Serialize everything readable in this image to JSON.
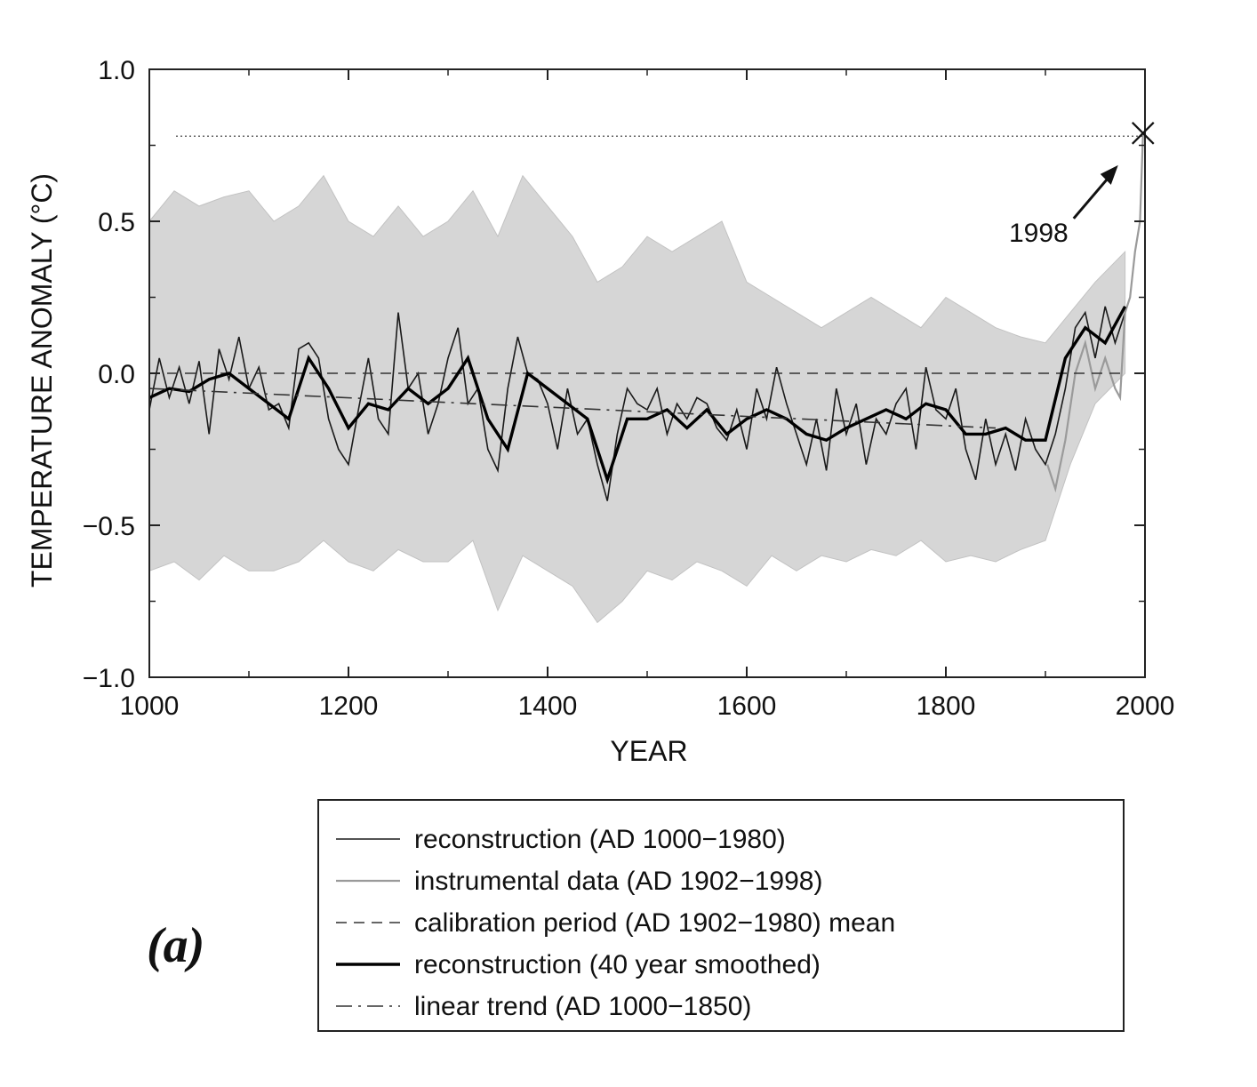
{
  "panel_label": "(a)",
  "chart_data": {
    "type": "line",
    "xlabel": "YEAR",
    "ylabel": "TEMPERATURE ANOMALY (°C)",
    "xlim": [
      1000,
      2000
    ],
    "ylim": [
      -1.0,
      1.0
    ],
    "x_ticks": [
      1000,
      1200,
      1400,
      1600,
      1800,
      2000
    ],
    "x_tick_labels": [
      "1000",
      "1200",
      "1400",
      "1600",
      "1800",
      "2000"
    ],
    "y_ticks": [
      1.0,
      0.5,
      0.0,
      -0.5,
      -1.0
    ],
    "y_tick_labels": [
      "1.0",
      "0.5",
      "0.0",
      "−0.5",
      "−1.0"
    ],
    "grid": false,
    "legend_position": "below",
    "annotation": {
      "text": "1998",
      "x": 1998,
      "y": 0.79
    },
    "reference_line_y": 0.78,
    "series": [
      {
        "name": "reconstruction (AD 1000−1980)",
        "style": "thin-solid",
        "x": [
          1000,
          1010,
          1020,
          1030,
          1040,
          1050,
          1060,
          1070,
          1080,
          1090,
          1100,
          1110,
          1120,
          1130,
          1140,
          1150,
          1160,
          1170,
          1180,
          1190,
          1200,
          1210,
          1220,
          1230,
          1240,
          1250,
          1260,
          1270,
          1280,
          1290,
          1300,
          1310,
          1320,
          1330,
          1340,
          1350,
          1360,
          1370,
          1380,
          1390,
          1400,
          1410,
          1420,
          1430,
          1440,
          1450,
          1460,
          1470,
          1480,
          1490,
          1500,
          1510,
          1520,
          1530,
          1540,
          1550,
          1560,
          1570,
          1580,
          1590,
          1600,
          1610,
          1620,
          1630,
          1640,
          1650,
          1660,
          1670,
          1680,
          1690,
          1700,
          1710,
          1720,
          1730,
          1740,
          1750,
          1760,
          1770,
          1780,
          1790,
          1800,
          1810,
          1820,
          1830,
          1840,
          1850,
          1860,
          1870,
          1880,
          1890,
          1900,
          1910,
          1920,
          1930,
          1940,
          1950,
          1960,
          1970,
          1980
        ],
        "y": [
          -0.12,
          0.05,
          -0.08,
          0.02,
          -0.1,
          0.04,
          -0.2,
          0.08,
          -0.02,
          0.12,
          -0.05,
          0.02,
          -0.12,
          -0.1,
          -0.18,
          0.08,
          0.1,
          0.05,
          -0.15,
          -0.25,
          -0.3,
          -0.12,
          0.05,
          -0.15,
          -0.2,
          0.2,
          -0.05,
          0.0,
          -0.2,
          -0.1,
          0.05,
          0.15,
          -0.1,
          -0.05,
          -0.25,
          -0.32,
          -0.05,
          0.12,
          0.0,
          -0.02,
          -0.1,
          -0.25,
          -0.05,
          -0.2,
          -0.15,
          -0.3,
          -0.42,
          -0.2,
          -0.05,
          -0.1,
          -0.12,
          -0.05,
          -0.2,
          -0.1,
          -0.15,
          -0.08,
          -0.1,
          -0.18,
          -0.22,
          -0.12,
          -0.25,
          -0.05,
          -0.15,
          0.02,
          -0.1,
          -0.2,
          -0.3,
          -0.15,
          -0.32,
          -0.05,
          -0.2,
          -0.1,
          -0.3,
          -0.15,
          -0.2,
          -0.1,
          -0.05,
          -0.25,
          0.02,
          -0.12,
          -0.15,
          -0.05,
          -0.25,
          -0.35,
          -0.15,
          -0.3,
          -0.2,
          -0.32,
          -0.15,
          -0.25,
          -0.3,
          -0.2,
          -0.05,
          0.15,
          0.2,
          0.05,
          0.22,
          0.1,
          0.2
        ]
      },
      {
        "name": "instrumental data (AD 1902−1998)",
        "style": "light-solid",
        "x": [
          1902,
          1910,
          1920,
          1930,
          1940,
          1950,
          1960,
          1970,
          1975,
          1980,
          1985,
          1990,
          1995,
          1998
        ],
        "y": [
          -0.3,
          -0.38,
          -0.22,
          0.0,
          0.1,
          -0.05,
          0.05,
          -0.05,
          -0.08,
          0.2,
          0.25,
          0.4,
          0.5,
          0.79
        ]
      },
      {
        "name": "calibration period (AD 1902−1980) mean",
        "style": "dashed",
        "x": [
          1000,
          1980
        ],
        "y": [
          0.0,
          0.0
        ]
      },
      {
        "name": "reconstruction (40 year smoothed)",
        "style": "thick-solid",
        "x": [
          1000,
          1020,
          1040,
          1060,
          1080,
          1100,
          1120,
          1140,
          1160,
          1180,
          1200,
          1220,
          1240,
          1260,
          1280,
          1300,
          1320,
          1340,
          1360,
          1380,
          1400,
          1420,
          1440,
          1460,
          1480,
          1500,
          1520,
          1540,
          1560,
          1580,
          1600,
          1620,
          1640,
          1660,
          1680,
          1700,
          1720,
          1740,
          1760,
          1780,
          1800,
          1820,
          1840,
          1860,
          1880,
          1900,
          1920,
          1940,
          1960,
          1980
        ],
        "y": [
          -0.08,
          -0.05,
          -0.06,
          -0.02,
          0.0,
          -0.05,
          -0.1,
          -0.15,
          0.05,
          -0.05,
          -0.18,
          -0.1,
          -0.12,
          -0.05,
          -0.1,
          -0.05,
          0.05,
          -0.15,
          -0.25,
          0.0,
          -0.05,
          -0.1,
          -0.15,
          -0.35,
          -0.15,
          -0.15,
          -0.12,
          -0.18,
          -0.12,
          -0.2,
          -0.15,
          -0.12,
          -0.15,
          -0.2,
          -0.22,
          -0.18,
          -0.15,
          -0.12,
          -0.15,
          -0.1,
          -0.12,
          -0.2,
          -0.2,
          -0.18,
          -0.22,
          -0.22,
          0.05,
          0.15,
          0.1,
          0.22
        ]
      },
      {
        "name": "linear trend (AD 1000−1850)",
        "style": "dash-dot",
        "x": [
          1000,
          1850
        ],
        "y": [
          -0.05,
          -0.18
        ]
      }
    ],
    "uncertainty_band": {
      "x": [
        1000,
        1025,
        1050,
        1075,
        1100,
        1125,
        1150,
        1175,
        1200,
        1225,
        1250,
        1275,
        1300,
        1325,
        1350,
        1375,
        1400,
        1425,
        1450,
        1475,
        1500,
        1525,
        1550,
        1575,
        1600,
        1625,
        1650,
        1675,
        1700,
        1725,
        1750,
        1775,
        1800,
        1825,
        1850,
        1875,
        1900,
        1925,
        1950,
        1980
      ],
      "upper": [
        0.5,
        0.6,
        0.55,
        0.58,
        0.6,
        0.5,
        0.55,
        0.65,
        0.5,
        0.45,
        0.55,
        0.45,
        0.5,
        0.6,
        0.45,
        0.65,
        0.55,
        0.45,
        0.3,
        0.35,
        0.45,
        0.4,
        0.45,
        0.5,
        0.3,
        0.25,
        0.2,
        0.15,
        0.2,
        0.25,
        0.2,
        0.15,
        0.25,
        0.2,
        0.15,
        0.12,
        0.1,
        0.2,
        0.3,
        0.4
      ],
      "lower": [
        -0.65,
        -0.62,
        -0.68,
        -0.6,
        -0.65,
        -0.65,
        -0.62,
        -0.55,
        -0.62,
        -0.65,
        -0.58,
        -0.62,
        -0.62,
        -0.55,
        -0.78,
        -0.6,
        -0.65,
        -0.7,
        -0.82,
        -0.75,
        -0.65,
        -0.68,
        -0.62,
        -0.65,
        -0.7,
        -0.6,
        -0.65,
        -0.6,
        -0.62,
        -0.58,
        -0.6,
        -0.55,
        -0.62,
        -0.6,
        -0.62,
        -0.58,
        -0.55,
        -0.3,
        -0.1,
        0.0
      ]
    }
  },
  "legend": {
    "items": [
      {
        "label": "reconstruction (AD 1000−1980)",
        "style": "thin-solid"
      },
      {
        "label": "instrumental data (AD 1902−1998)",
        "style": "light-solid"
      },
      {
        "label": "calibration period (AD 1902−1980) mean",
        "style": "dashed"
      },
      {
        "label": "reconstruction (40 year smoothed)",
        "style": "thick-solid"
      },
      {
        "label": "linear trend (AD 1000−1850)",
        "style": "dash-dot"
      }
    ]
  }
}
